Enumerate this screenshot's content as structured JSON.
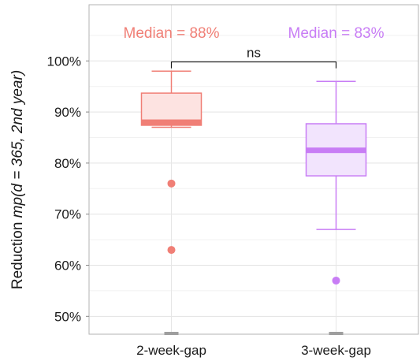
{
  "chart_data": {
    "type": "box",
    "title": "",
    "xlabel": "",
    "ylabel": {
      "prefix": "Reduction ",
      "math": "mp(d = 365, 2nd year)"
    },
    "ylim": [
      46.5,
      111
    ],
    "yticks": [
      50,
      60,
      70,
      80,
      90,
      100
    ],
    "ytick_labels": [
      "50%",
      "60%",
      "70%",
      "80%",
      "90%",
      "100%"
    ],
    "grid": true,
    "categories": [
      "2-week-gap",
      "3-week-gap"
    ],
    "series": [
      {
        "category": "2-week-gap",
        "color": "#F07F76",
        "fill": "#FDE3E1",
        "whisker_low": 87,
        "q1": 87.4,
        "median": 88,
        "q3": 93.7,
        "whisker_high": 98,
        "outliers": [
          76,
          63
        ],
        "median_label": "Median = 88%"
      },
      {
        "category": "3-week-gap",
        "color": "#C87DF5",
        "fill": "#F2E4FD",
        "whisker_low": 67,
        "q1": 77.5,
        "median": 82.5,
        "q3": 87.7,
        "whisker_high": 96,
        "outliers": [
          57
        ],
        "median_label": "Median = 83%"
      }
    ],
    "comparison": {
      "label": "ns",
      "y": 99.8
    }
  }
}
